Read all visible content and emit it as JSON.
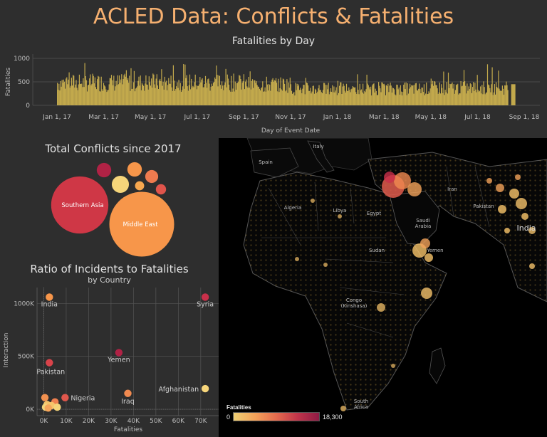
{
  "dashboard": {
    "title": "ACLED Data: Conflicts & Fatalities"
  },
  "chart_data": [
    {
      "type": "bar",
      "title": "Fatalities by Day",
      "xlabel": "Day of Event Date",
      "ylabel": "Fatalities",
      "ylim": [
        0,
        1000
      ],
      "yticks": [
        "0",
        "500",
        "1000"
      ],
      "xticks": [
        "Jan 1, 17",
        "Mar 1, 17",
        "May 1, 17",
        "Jul 1, 17",
        "Sep 1, 17",
        "Nov 1, 17",
        "Jan 1, 18",
        "Mar 1, 18",
        "May 1, 18",
        "Jul 1, 18",
        "Sep 1, 18"
      ],
      "segments": [
        {
          "x_start": "Jan 1, 17",
          "x_end": "Sep 1, 17",
          "level": 520,
          "peak": 930
        },
        {
          "x_start": "Sep 1, 17",
          "x_end": "Nov 1, 17",
          "level": 480,
          "peak": 800
        },
        {
          "x_start": "Nov 1, 17",
          "x_end": "May 1, 18",
          "level": 380,
          "peak": 700
        },
        {
          "x_start": "May 1, 18",
          "x_end": "Aug 20, 18",
          "level": 400,
          "peak": 880
        }
      ],
      "last_value": 450
    },
    {
      "type": "bubble",
      "title": "Total Conflicts since 2017",
      "bubbles": [
        {
          "label": "Middle East",
          "value": 100,
          "color": "#f7964a"
        },
        {
          "label": "Southern Asia",
          "value": 78,
          "color": "#cf3746"
        },
        {
          "label": "",
          "value": 7,
          "color": "#f5d57a"
        },
        {
          "label": "",
          "value": 5,
          "color": "#b02245"
        },
        {
          "label": "",
          "value": 5,
          "color": "#f7964a"
        },
        {
          "label": "",
          "value": 4,
          "color": "#ee7b4f"
        },
        {
          "label": "",
          "value": 2.5,
          "color": "#e0544b"
        },
        {
          "label": "",
          "value": 2,
          "color": "#f8a84f"
        }
      ]
    },
    {
      "type": "scatter",
      "title": "Ratio of Incidents to Fatalities",
      "subtitle": "by Country",
      "xlabel": "Fatalities",
      "ylabel": "Interaction",
      "xlim": [
        -3000,
        78000
      ],
      "ylim": [
        -60000,
        1150000
      ],
      "xticks": [
        "0K",
        "10K",
        "20K",
        "30K",
        "40K",
        "50K",
        "60K",
        "70K"
      ],
      "yticks": [
        "0K",
        "500K",
        "1000K"
      ],
      "points": [
        {
          "label": "India",
          "x": 2500,
          "y": 1060000,
          "color": "#f7964a"
        },
        {
          "label": "Syria",
          "x": 72000,
          "y": 1060000,
          "color": "#c9304a"
        },
        {
          "label": "Yemen",
          "x": 33500,
          "y": 535000,
          "color": "#b02245"
        },
        {
          "label": "Pakistan",
          "x": 2500,
          "y": 440000,
          "color": "#d9434a"
        },
        {
          "label": "Afghanistan",
          "x": 72000,
          "y": 195000,
          "color": "#f7d67b"
        },
        {
          "label": "Iraq",
          "x": 37500,
          "y": 150000,
          "color": "#f18a50"
        },
        {
          "label": "Nigeria",
          "x": 9500,
          "y": 110000,
          "color": "#e0574c"
        },
        {
          "label": "",
          "x": 500,
          "y": 110000,
          "color": "#f29150"
        },
        {
          "label": "",
          "x": 5000,
          "y": 70000,
          "color": "#ef804f"
        },
        {
          "label": "",
          "x": 1500,
          "y": 45000,
          "color": "#f7c46a"
        },
        {
          "label": "",
          "x": 3500,
          "y": 35000,
          "color": "#f7c46a"
        },
        {
          "label": "",
          "x": 6000,
          "y": 20000,
          "color": "#f5d57a"
        },
        {
          "label": "",
          "x": 800,
          "y": 20000,
          "color": "#f5d57a"
        },
        {
          "label": "",
          "x": 2000,
          "y": 12000,
          "color": "#f7a55a"
        }
      ]
    },
    {
      "type": "map",
      "countries": [
        "Spain",
        "Italy",
        "Algeria",
        "Libya",
        "Egypt",
        "Saudi Arabia",
        "Iran",
        "Sudan",
        "Yemen",
        "Congo (Kinshasa)",
        "South Africa",
        "Pakistan",
        "India"
      ],
      "legend": {
        "title": "Fatalities",
        "min_label": "0",
        "max_label": "18,300"
      }
    }
  ]
}
